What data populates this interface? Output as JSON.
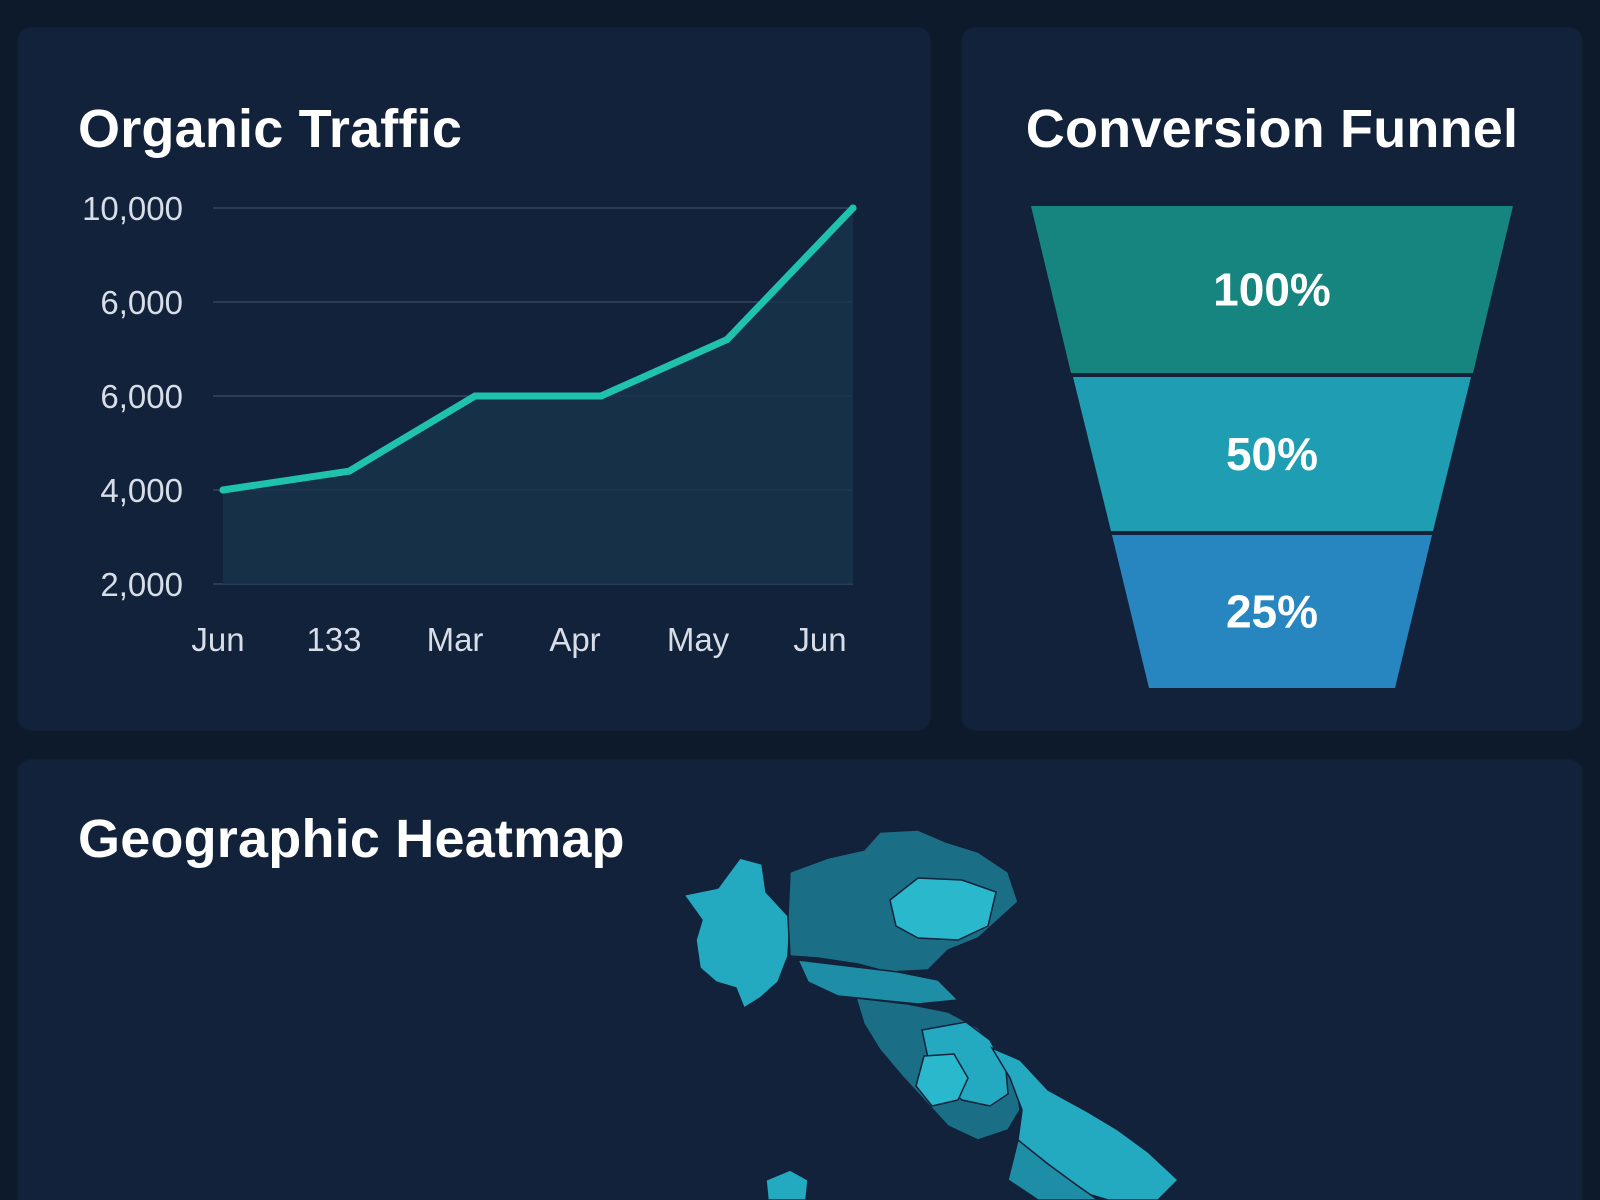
{
  "traffic": {
    "title": "Organic Traffic",
    "chart_data": {
      "type": "area",
      "title": "Organic Traffic",
      "categories": [
        "Jun",
        "133",
        "Mar",
        "Apr",
        "May",
        "Jun"
      ],
      "y_tick_labels": [
        "10,000",
        "6,000",
        "6,000",
        "4,000",
        "2,000"
      ],
      "series": [
        {
          "values": [
            4000,
            4400,
            6000,
            6000,
            7200,
            10000
          ]
        }
      ],
      "ylim": [
        2000,
        10000
      ],
      "grid": true,
      "line_color": "#1fc3ad",
      "fill_color": "#17344a"
    }
  },
  "funnel": {
    "title": "Conversion Funnel",
    "chart_data": {
      "type": "funnel",
      "stages": [
        {
          "label": "100%",
          "value": 100,
          "color": "#17857f"
        },
        {
          "label": "50%",
          "value": 50,
          "color": "#1f9db3"
        },
        {
          "label": "25%",
          "value": 25,
          "color": "#2786bf"
        }
      ]
    }
  },
  "geo": {
    "title": "Geographic Heatmap",
    "colors": [
      "#1a6f86",
      "#1e8ea6",
      "#23a9c0",
      "#2ab8cc"
    ]
  }
}
